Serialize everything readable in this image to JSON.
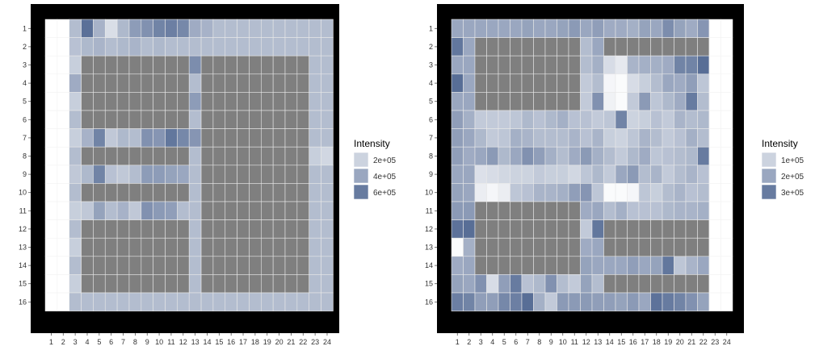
{
  "chart_data": [
    {
      "type": "heatmap",
      "x": [
        "1",
        "2",
        "3",
        "4",
        "5",
        "6",
        "7",
        "8",
        "9",
        "10",
        "11",
        "12",
        "13",
        "14",
        "15",
        "16",
        "17",
        "18",
        "19",
        "20",
        "21",
        "22",
        "23",
        "24"
      ],
      "y": [
        "1",
        "2",
        "3",
        "4",
        "5",
        "6",
        "7",
        "8",
        "9",
        "10",
        "11",
        "12",
        "13",
        "14",
        "15",
        "16"
      ],
      "legend": {
        "title": "Intensity",
        "entries": [
          "2e+05",
          "4e+05",
          "6e+05"
        ],
        "entry_values": [
          200000,
          400000,
          600000
        ]
      },
      "color_scale": {
        "low": "#ffffff",
        "high": "#4e6590",
        "min": 0,
        "max": 700000,
        "na_color": "#7f7f7f"
      },
      "values": [
        [
          null,
          null,
          300000,
          650000,
          350000,
          150000,
          320000,
          450000,
          500000,
          560000,
          580000,
          540000,
          380000,
          350000,
          300000,
          300000,
          300000,
          300000,
          300000,
          300000,
          300000,
          300000,
          300000,
          300000
        ],
        [
          null,
          null,
          280000,
          320000,
          340000,
          300000,
          320000,
          340000,
          300000,
          320000,
          300000,
          300000,
          300000,
          300000,
          300000,
          300000,
          300000,
          300000,
          300000,
          300000,
          300000,
          300000,
          300000,
          300000
        ],
        [
          null,
          null,
          220000,
          "NA",
          "NA",
          "NA",
          "NA",
          "NA",
          "NA",
          "NA",
          "NA",
          "NA",
          520000,
          "NA",
          "NA",
          "NA",
          "NA",
          "NA",
          "NA",
          "NA",
          "NA",
          "NA",
          300000,
          300000
        ],
        [
          null,
          null,
          380000,
          "NA",
          "NA",
          "NA",
          "NA",
          "NA",
          "NA",
          "NA",
          "NA",
          "NA",
          300000,
          "NA",
          "NA",
          "NA",
          "NA",
          "NA",
          "NA",
          "NA",
          "NA",
          "NA",
          300000,
          300000
        ],
        [
          null,
          null,
          220000,
          "NA",
          "NA",
          "NA",
          "NA",
          "NA",
          "NA",
          "NA",
          "NA",
          "NA",
          450000,
          "NA",
          "NA",
          "NA",
          "NA",
          "NA",
          "NA",
          "NA",
          "NA",
          "NA",
          300000,
          300000
        ],
        [
          null,
          null,
          300000,
          "NA",
          "NA",
          "NA",
          "NA",
          "NA",
          "NA",
          "NA",
          "NA",
          "NA",
          300000,
          "NA",
          "NA",
          "NA",
          "NA",
          "NA",
          "NA",
          "NA",
          "NA",
          "NA",
          300000,
          300000
        ],
        [
          null,
          null,
          220000,
          350000,
          560000,
          250000,
          320000,
          300000,
          500000,
          480000,
          620000,
          540000,
          480000,
          "NA",
          "NA",
          "NA",
          "NA",
          "NA",
          "NA",
          "NA",
          "NA",
          "NA",
          300000,
          300000
        ],
        [
          null,
          null,
          300000,
          "NA",
          "NA",
          "NA",
          "NA",
          "NA",
          "NA",
          "NA",
          "NA",
          "NA",
          300000,
          "NA",
          "NA",
          "NA",
          "NA",
          "NA",
          "NA",
          "NA",
          "NA",
          "NA",
          220000,
          180000
        ],
        [
          null,
          null,
          250000,
          320000,
          560000,
          280000,
          250000,
          300000,
          450000,
          450000,
          420000,
          400000,
          300000,
          "NA",
          "NA",
          "NA",
          "NA",
          "NA",
          "NA",
          "NA",
          "NA",
          "NA",
          300000,
          300000
        ],
        [
          null,
          null,
          300000,
          "NA",
          "NA",
          "NA",
          "NA",
          "NA",
          "NA",
          "NA",
          "NA",
          "NA",
          300000,
          "NA",
          "NA",
          "NA",
          "NA",
          "NA",
          "NA",
          "NA",
          "NA",
          "NA",
          300000,
          300000
        ],
        [
          null,
          null,
          220000,
          250000,
          420000,
          300000,
          350000,
          250000,
          500000,
          460000,
          440000,
          300000,
          300000,
          "NA",
          "NA",
          "NA",
          "NA",
          "NA",
          "NA",
          "NA",
          "NA",
          "NA",
          300000,
          300000
        ],
        [
          null,
          null,
          300000,
          "NA",
          "NA",
          "NA",
          "NA",
          "NA",
          "NA",
          "NA",
          "NA",
          "NA",
          300000,
          "NA",
          "NA",
          "NA",
          "NA",
          "NA",
          "NA",
          "NA",
          "NA",
          "NA",
          300000,
          300000
        ],
        [
          null,
          null,
          220000,
          "NA",
          "NA",
          "NA",
          "NA",
          "NA",
          "NA",
          "NA",
          "NA",
          "NA",
          300000,
          "NA",
          "NA",
          "NA",
          "NA",
          "NA",
          "NA",
          "NA",
          "NA",
          "NA",
          300000,
          300000
        ],
        [
          null,
          null,
          300000,
          "NA",
          "NA",
          "NA",
          "NA",
          "NA",
          "NA",
          "NA",
          "NA",
          "NA",
          300000,
          "NA",
          "NA",
          "NA",
          "NA",
          "NA",
          "NA",
          "NA",
          "NA",
          "NA",
          300000,
          300000
        ],
        [
          null,
          null,
          220000,
          "NA",
          "NA",
          "NA",
          "NA",
          "NA",
          "NA",
          "NA",
          "NA",
          "NA",
          300000,
          "NA",
          "NA",
          "NA",
          "NA",
          "NA",
          "NA",
          "NA",
          "NA",
          "NA",
          300000,
          300000
        ],
        [
          null,
          null,
          300000,
          300000,
          300000,
          300000,
          300000,
          300000,
          300000,
          300000,
          300000,
          300000,
          300000,
          300000,
          300000,
          300000,
          300000,
          300000,
          300000,
          300000,
          300000,
          300000,
          300000,
          300000
        ]
      ]
    },
    {
      "type": "heatmap",
      "x": [
        "1",
        "2",
        "3",
        "4",
        "5",
        "6",
        "7",
        "8",
        "9",
        "10",
        "11",
        "12",
        "13",
        "14",
        "15",
        "16",
        "17",
        "18",
        "19",
        "20",
        "21",
        "22",
        "23",
        "24"
      ],
      "y": [
        "1",
        "2",
        "3",
        "4",
        "5",
        "6",
        "7",
        "8",
        "9",
        "10",
        "11",
        "12",
        "13",
        "14",
        "15",
        "16"
      ],
      "legend": {
        "title": "Intensity",
        "entries": [
          "1e+05",
          "2e+05",
          "3e+05"
        ],
        "entry_values": [
          100000,
          200000,
          300000
        ]
      },
      "color_scale": {
        "low": "#ffffff",
        "high": "#4e6590",
        "min": 0,
        "max": 350000,
        "na_color": "#7f7f7f"
      },
      "values": [
        [
          200000,
          200000,
          200000,
          200000,
          200000,
          200000,
          210000,
          200000,
          200000,
          210000,
          230000,
          200000,
          220000,
          190000,
          190000,
          180000,
          210000,
          200000,
          260000,
          210000,
          190000,
          240000,
          null,
          null
        ],
        [
          310000,
          200000,
          "NA",
          "NA",
          "NA",
          "NA",
          "NA",
          "NA",
          "NA",
          "NA",
          "NA",
          150000,
          200000,
          "NA",
          "NA",
          "NA",
          "NA",
          "NA",
          "NA",
          "NA",
          "NA",
          "NA",
          null,
          null
        ],
        [
          200000,
          200000,
          "NA",
          "NA",
          "NA",
          "NA",
          "NA",
          "NA",
          "NA",
          "NA",
          "NA",
          150000,
          180000,
          80000,
          50000,
          170000,
          180000,
          180000,
          190000,
          280000,
          280000,
          330000,
          null,
          null
        ],
        [
          330000,
          200000,
          "NA",
          "NA",
          "NA",
          "NA",
          "NA",
          "NA",
          "NA",
          "NA",
          "NA",
          120000,
          150000,
          20000,
          10000,
          80000,
          110000,
          150000,
          200000,
          190000,
          220000,
          130000,
          null,
          null
        ],
        [
          200000,
          200000,
          "NA",
          "NA",
          "NA",
          "NA",
          "NA",
          "NA",
          "NA",
          "NA",
          "NA",
          120000,
          250000,
          30000,
          10000,
          120000,
          230000,
          130000,
          160000,
          190000,
          300000,
          150000,
          null,
          null
        ],
        [
          220000,
          180000,
          120000,
          120000,
          120000,
          130000,
          160000,
          140000,
          160000,
          180000,
          140000,
          140000,
          120000,
          130000,
          280000,
          100000,
          110000,
          140000,
          120000,
          170000,
          150000,
          160000,
          null,
          null
        ],
        [
          220000,
          200000,
          160000,
          120000,
          130000,
          180000,
          170000,
          150000,
          150000,
          150000,
          170000,
          140000,
          170000,
          110000,
          100000,
          130000,
          170000,
          150000,
          120000,
          140000,
          180000,
          150000,
          null,
          null
        ],
        [
          220000,
          190000,
          200000,
          230000,
          160000,
          200000,
          250000,
          220000,
          180000,
          150000,
          190000,
          230000,
          180000,
          150000,
          120000,
          160000,
          190000,
          130000,
          140000,
          150000,
          160000,
          300000,
          null,
          null
        ],
        [
          200000,
          200000,
          70000,
          80000,
          90000,
          100000,
          100000,
          120000,
          110000,
          110000,
          90000,
          130000,
          160000,
          120000,
          200000,
          230000,
          150000,
          170000,
          120000,
          150000,
          170000,
          140000,
          null,
          null
        ],
        [
          210000,
          200000,
          40000,
          20000,
          40000,
          130000,
          140000,
          170000,
          170000,
          180000,
          220000,
          240000,
          130000,
          10000,
          10000,
          20000,
          130000,
          110000,
          150000,
          170000,
          140000,
          150000,
          null,
          null
        ],
        [
          230000,
          230000,
          "NA",
          "NA",
          "NA",
          "NA",
          "NA",
          "NA",
          "NA",
          "NA",
          "NA",
          190000,
          200000,
          150000,
          180000,
          140000,
          140000,
          140000,
          160000,
          170000,
          170000,
          180000,
          null,
          null
        ],
        [
          320000,
          330000,
          "NA",
          "NA",
          "NA",
          "NA",
          "NA",
          "NA",
          "NA",
          "NA",
          "NA",
          120000,
          310000,
          "NA",
          "NA",
          "NA",
          "NA",
          "NA",
          "NA",
          "NA",
          "NA",
          "NA",
          null,
          null
        ],
        [
          10000,
          180000,
          "NA",
          "NA",
          "NA",
          "NA",
          "NA",
          "NA",
          "NA",
          "NA",
          "NA",
          190000,
          200000,
          "NA",
          "NA",
          "NA",
          "NA",
          "NA",
          "NA",
          "NA",
          "NA",
          "NA",
          null,
          null
        ],
        [
          190000,
          200000,
          "NA",
          "NA",
          "NA",
          "NA",
          "NA",
          "NA",
          "NA",
          "NA",
          "NA",
          210000,
          200000,
          200000,
          200000,
          220000,
          200000,
          210000,
          310000,
          130000,
          170000,
          200000,
          null,
          null
        ],
        [
          210000,
          200000,
          250000,
          80000,
          220000,
          300000,
          140000,
          160000,
          250000,
          150000,
          120000,
          210000,
          150000,
          "NA",
          "NA",
          "NA",
          "NA",
          "NA",
          "NA",
          "NA",
          "NA",
          "NA",
          null,
          null
        ],
        [
          290000,
          280000,
          220000,
          220000,
          270000,
          290000,
          330000,
          180000,
          120000,
          230000,
          230000,
          230000,
          220000,
          220000,
          210000,
          230000,
          200000,
          320000,
          300000,
          280000,
          250000,
          210000,
          null,
          null
        ]
      ]
    }
  ]
}
